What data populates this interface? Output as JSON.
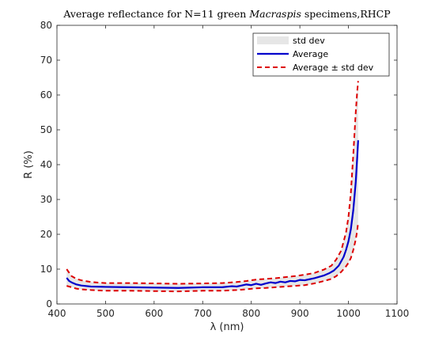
{
  "chart_data": {
    "type": "line",
    "title": "Average reflectance for N=11 green Macraspis specimens,RHCP",
    "title_parts": [
      "Average reflectance for N=11 green ",
      "Macraspis",
      " specimens,RHCP"
    ],
    "xlabel": "λ (nm)",
    "ylabel": "R (%)",
    "xlim": [
      400,
      1100
    ],
    "ylim": [
      0,
      80
    ],
    "xticks": [
      400,
      500,
      600,
      700,
      800,
      900,
      1000,
      1100
    ],
    "yticks": [
      0,
      10,
      20,
      30,
      40,
      50,
      60,
      70,
      80
    ],
    "grid": false,
    "legend_position": "top-right",
    "colors": {
      "band": "#e6e6e6",
      "average": "#0000cc",
      "bounds": "#dd0000",
      "axis": "#262626"
    },
    "series": [
      {
        "name": "std dev",
        "kind": "band",
        "x": [
          420,
          430,
          440,
          450,
          470,
          500,
          550,
          600,
          650,
          700,
          740,
          770,
          790,
          810,
          830,
          850,
          870,
          890,
          910,
          930,
          950,
          965,
          975,
          985,
          995,
          1000,
          1005,
          1010,
          1015,
          1018,
          1020
        ],
        "lower": [
          5.2,
          4.8,
          4.4,
          4.2,
          4.0,
          3.8,
          3.8,
          3.7,
          3.6,
          3.8,
          3.8,
          4.0,
          4.2,
          4.5,
          4.6,
          4.8,
          5.0,
          5.2,
          5.4,
          5.9,
          6.6,
          7.2,
          8.0,
          9.2,
          10.8,
          11.8,
          13.2,
          15.5,
          18.5,
          21.0,
          23.5
        ],
        "upper": [
          10.0,
          8.0,
          7.2,
          6.8,
          6.3,
          6.0,
          6.0,
          5.9,
          5.8,
          5.9,
          6.0,
          6.3,
          6.6,
          7.0,
          7.2,
          7.4,
          7.7,
          8.0,
          8.4,
          8.9,
          9.9,
          11.0,
          12.8,
          15.3,
          20.5,
          25.0,
          32.0,
          43.0,
          55.0,
          61.0,
          64.0
        ]
      },
      {
        "name": "Average",
        "kind": "line",
        "x": [
          420,
          425,
          430,
          440,
          450,
          470,
          500,
          550,
          600,
          650,
          700,
          740,
          760,
          770,
          780,
          790,
          800,
          810,
          820,
          830,
          840,
          850,
          860,
          870,
          880,
          890,
          900,
          910,
          920,
          930,
          940,
          950,
          960,
          970,
          980,
          990,
          995,
          1000,
          1005,
          1010,
          1015,
          1018,
          1020
        ],
        "values": [
          7.5,
          6.6,
          6.2,
          5.6,
          5.3,
          5.0,
          4.9,
          4.8,
          4.7,
          4.6,
          4.8,
          4.8,
          5.1,
          5.0,
          5.3,
          5.6,
          5.4,
          5.8,
          5.5,
          5.9,
          6.2,
          6.0,
          6.4,
          6.2,
          6.6,
          6.5,
          6.9,
          6.8,
          7.1,
          7.4,
          7.8,
          8.2,
          8.8,
          9.6,
          11.0,
          13.5,
          15.5,
          18.0,
          21.5,
          27.0,
          35.0,
          42.0,
          47.0
        ]
      },
      {
        "name": "Average ± std dev",
        "kind": "dashed",
        "x": [
          420,
          430,
          440,
          450,
          470,
          500,
          550,
          600,
          650,
          700,
          740,
          770,
          790,
          810,
          830,
          850,
          870,
          890,
          910,
          930,
          950,
          965,
          975,
          985,
          995,
          1000,
          1005,
          1010,
          1015,
          1018,
          1020
        ],
        "upper": [
          10.0,
          8.0,
          7.2,
          6.8,
          6.3,
          6.0,
          6.0,
          5.9,
          5.8,
          5.9,
          6.0,
          6.3,
          6.6,
          7.0,
          7.2,
          7.4,
          7.7,
          8.0,
          8.4,
          8.9,
          9.9,
          11.0,
          12.8,
          15.3,
          20.5,
          25.0,
          32.0,
          43.0,
          55.0,
          61.0,
          64.0
        ],
        "lower": [
          5.2,
          4.8,
          4.4,
          4.2,
          4.0,
          3.8,
          3.8,
          3.7,
          3.6,
          3.8,
          3.8,
          4.0,
          4.2,
          4.5,
          4.6,
          4.8,
          5.0,
          5.2,
          5.4,
          5.9,
          6.6,
          7.2,
          8.0,
          9.2,
          10.8,
          11.8,
          13.2,
          15.5,
          18.5,
          21.0,
          23.5
        ]
      }
    ]
  }
}
